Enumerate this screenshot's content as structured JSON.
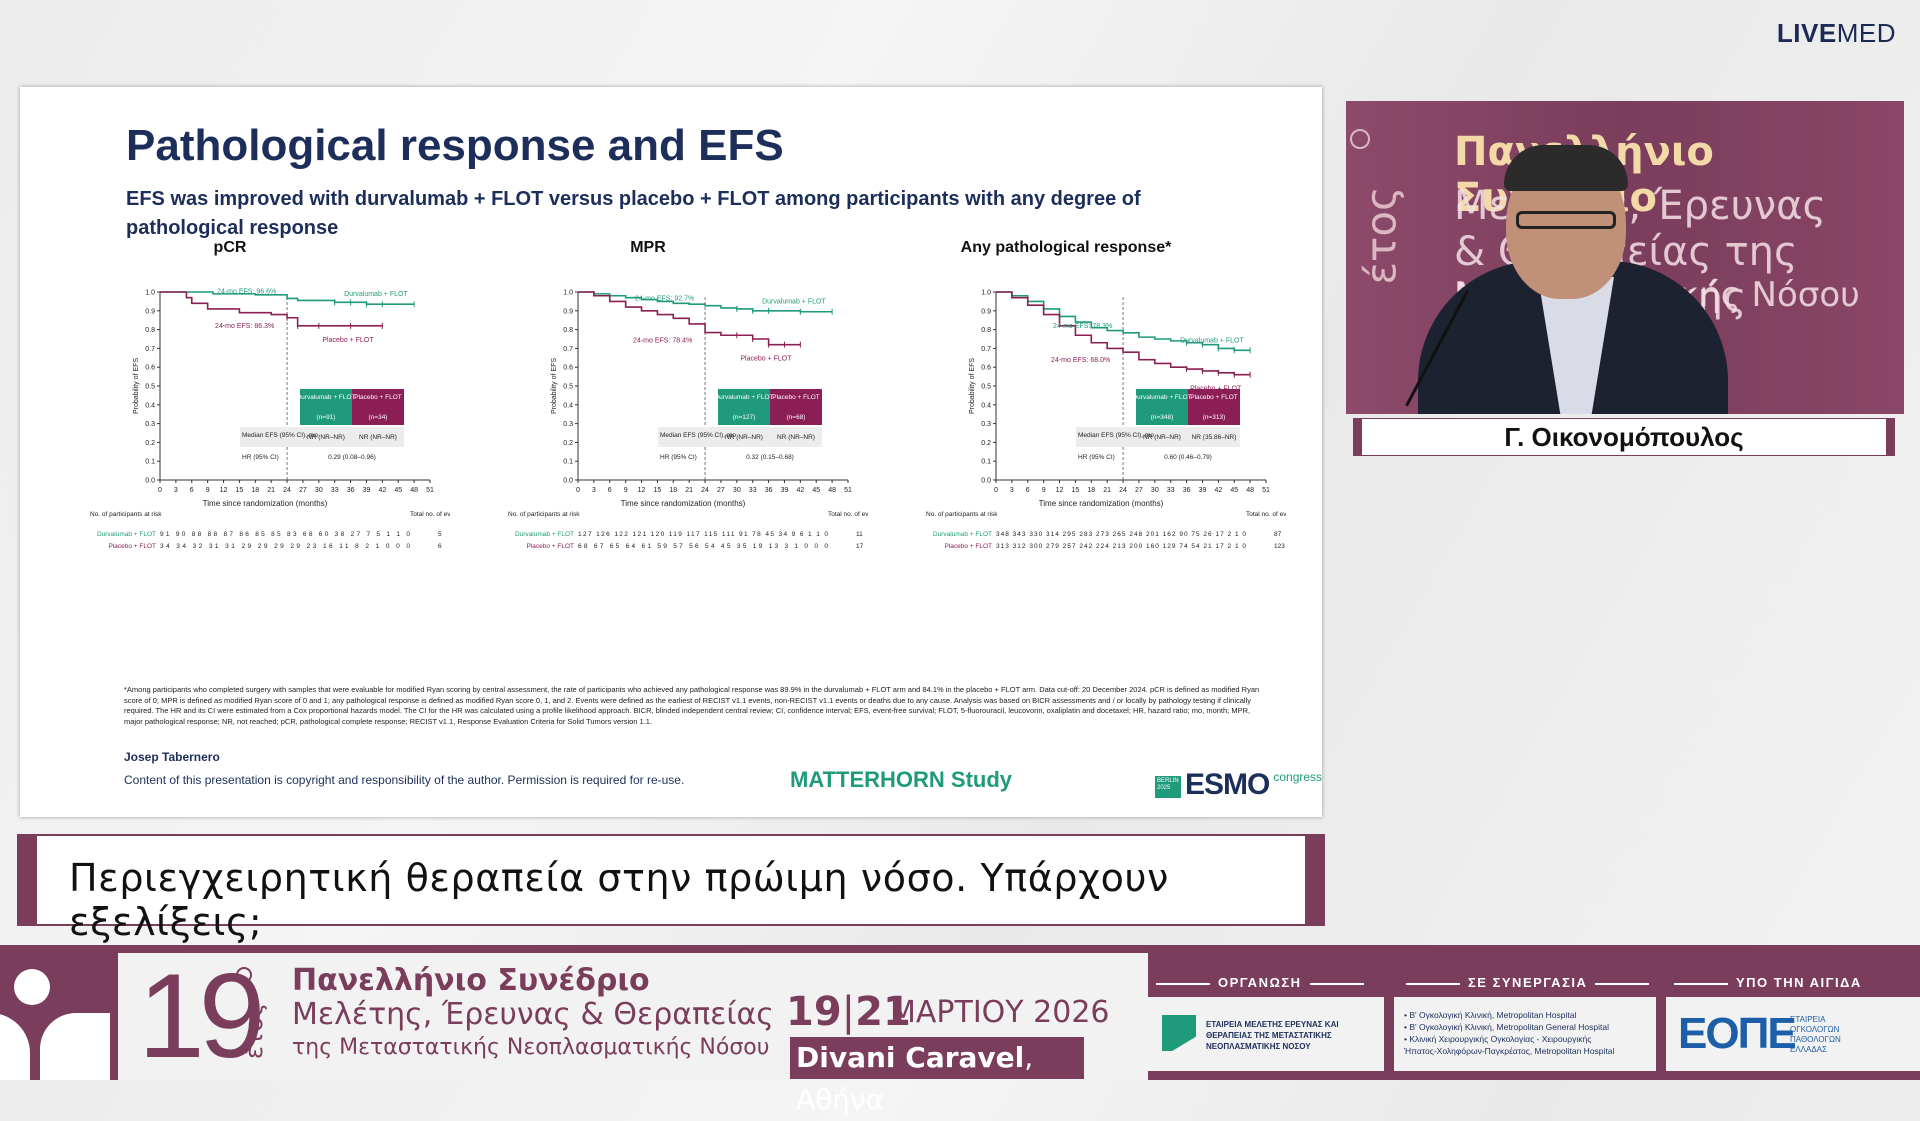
{
  "brand": {
    "live": "LIVE",
    "med": "MED"
  },
  "slide": {
    "title": "Pathological response and EFS",
    "subtitle": "EFS was improved with durvalumab + FLOT versus placebo + FLOT among participants with any degree of pathological response",
    "y_axis_label": "Probability of EFS",
    "x_axis_label": "Time since randomization (months)",
    "risk_header": "No. of participants at risk",
    "events_header": "Total no. of events",
    "table_headers": {
      "durva": "Durvalumab + FLOT",
      "placebo": "Placebo + FLOT",
      "median_label": "Median EFS (95% CI), mo",
      "hr_label": "HR (95% CI)"
    },
    "footnote": "*Among participants who completed surgery with samples that were evaluable for modified Ryan scoring by central assessment, the rate of participants who achieved any pathological response was 89.9% in the durvalumab + FLOT arm and 84.1% in the placebo + FLOT arm. Data cut-off: 20 December 2024. pCR is defined as modified Ryan score of 0; MPR is defined as modified Ryan score of 0 and 1; any pathological response is defined as modified Ryan score 0, 1, and 2. Events were defined as the earliest of RECIST v1.1 events, non-RECIST v1.1 events or deaths due to any cause. Analysis was based on BICR assessments and / or locally by pathology testing if clinically required. The HR and its CI were estimated from a Cox proportional hazards model. The CI for the HR was calculated using a profile likelihood approach. BICR, blinded independent central review; CI, confidence interval; EFS, event-free survival; FLOT, 5-fluorouracil, leucovorin, oxaliplatin and docetaxel; HR, hazard ratio; mo, month; MPR, major pathological response; NR, not reached; pCR, pathological complete response; RECIST v1.1, Response Evaluation Criteria for Solid Tumors version 1.1.",
    "author": "Josep Tabernero",
    "copyright": "Content of this presentation is copyright and responsibility of the author. Permission is required for re-use.",
    "study": "MATTERHORN Study",
    "esmo_box": "BERLIN 2025",
    "esmo_word": "ESMO",
    "esmo_congress": "congress"
  },
  "chart_data": [
    {
      "type": "line",
      "title": "pCR",
      "xlabel": "Time since randomization (months)",
      "ylabel": "Probability of EFS",
      "xlim": [
        0,
        51
      ],
      "ylim": [
        0,
        1.0
      ],
      "x_ticks": [
        0,
        3,
        6,
        9,
        12,
        15,
        18,
        21,
        24,
        27,
        30,
        33,
        36,
        39,
        42,
        45,
        48,
        51
      ],
      "y_ticks": [
        0,
        0.1,
        0.2,
        0.3,
        0.4,
        0.5,
        0.6,
        0.7,
        0.8,
        0.9,
        1.0
      ],
      "series": [
        {
          "name": "Durvalumab + FLOT",
          "color": "#1f9a7a",
          "points": [
            [
              0,
              1.0
            ],
            [
              6,
              1.0
            ],
            [
              10,
              0.99
            ],
            [
              18,
              0.985
            ],
            [
              24,
              0.966
            ],
            [
              26,
              0.955
            ],
            [
              30,
              0.955
            ],
            [
              33,
              0.945
            ],
            [
              36,
              0.945
            ],
            [
              39,
              0.935
            ],
            [
              42,
              0.935
            ],
            [
              48,
              0.935
            ]
          ]
        },
        {
          "name": "Placebo + FLOT",
          "color": "#8b1e55",
          "points": [
            [
              0,
              1.0
            ],
            [
              3,
              1.0
            ],
            [
              5,
              0.97
            ],
            [
              6,
              0.94
            ],
            [
              9,
              0.91
            ],
            [
              15,
              0.89
            ],
            [
              21,
              0.88
            ],
            [
              24,
              0.863
            ],
            [
              26,
              0.82
            ],
            [
              30,
              0.82
            ],
            [
              36,
              0.82
            ],
            [
              42,
              0.82
            ]
          ]
        }
      ],
      "annotations": [
        "24-mo EFS: 96.6%",
        "24-mo EFS: 86.3%"
      ],
      "table": {
        "durva_n": "(n=91)",
        "placebo_n": "(n=34)",
        "median_durva": "NR (NR–NR)",
        "median_placebo": "NR (NR–NR)",
        "hr": "0.29 (0.08–0.96)"
      },
      "risk": {
        "durva": "91  90  88  88  87  86  85  85  83  68  60  38  27  7  5  1  1  0",
        "placebo": "34  34  32  31  31  29  29  29  29  23  16  11  8  2  1  0  0  0",
        "durva_events": "5",
        "placebo_events": "6"
      }
    },
    {
      "type": "line",
      "title": "MPR",
      "xlabel": "Time since randomization (months)",
      "ylabel": "Probability of EFS",
      "xlim": [
        0,
        51
      ],
      "ylim": [
        0,
        1.0
      ],
      "x_ticks": [
        0,
        3,
        6,
        9,
        12,
        15,
        18,
        21,
        24,
        27,
        30,
        33,
        36,
        39,
        42,
        45,
        48,
        51
      ],
      "y_ticks": [
        0,
        0.1,
        0.2,
        0.3,
        0.4,
        0.5,
        0.6,
        0.7,
        0.8,
        0.9,
        1.0
      ],
      "series": [
        {
          "name": "Durvalumab + FLOT",
          "color": "#1f9a7a",
          "points": [
            [
              0,
              1.0
            ],
            [
              3,
              0.99
            ],
            [
              6,
              0.98
            ],
            [
              9,
              0.97
            ],
            [
              12,
              0.96
            ],
            [
              15,
              0.95
            ],
            [
              18,
              0.94
            ],
            [
              21,
              0.935
            ],
            [
              24,
              0.927
            ],
            [
              27,
              0.915
            ],
            [
              30,
              0.91
            ],
            [
              33,
              0.9
            ],
            [
              36,
              0.9
            ],
            [
              42,
              0.895
            ],
            [
              48,
              0.895
            ]
          ]
        },
        {
          "name": "Placebo + FLOT",
          "color": "#8b1e55",
          "points": [
            [
              0,
              1.0
            ],
            [
              3,
              0.98
            ],
            [
              6,
              0.95
            ],
            [
              9,
              0.92
            ],
            [
              12,
              0.9
            ],
            [
              15,
              0.88
            ],
            [
              18,
              0.86
            ],
            [
              21,
              0.83
            ],
            [
              24,
              0.784
            ],
            [
              27,
              0.77
            ],
            [
              30,
              0.77
            ],
            [
              33,
              0.75
            ],
            [
              36,
              0.72
            ],
            [
              39,
              0.72
            ],
            [
              42,
              0.72
            ]
          ]
        }
      ],
      "annotations": [
        "24-mo EFS: 92.7%",
        "24-mo EFS: 78.4%"
      ],
      "table": {
        "durva_n": "(n=127)",
        "placebo_n": "(n=68)",
        "median_durva": "NR (NR–NR)",
        "median_placebo": "NR (NR–NR)",
        "hr": "0.32 (0.15–0.68)"
      },
      "risk": {
        "durva": "127  126  122  121  120  119  117  115  111  91  78  45  34  9  6  1  1  0",
        "placebo": "68  67  65  64  61  59  57  56  54  45  35  19  13  3  1  0  0  0",
        "durva_events": "11",
        "placebo_events": "17"
      }
    },
    {
      "type": "line",
      "title": "Any pathological response*",
      "xlabel": "Time since randomization (months)",
      "ylabel": "Probability of EFS",
      "xlim": [
        0,
        51
      ],
      "ylim": [
        0,
        1.0
      ],
      "x_ticks": [
        0,
        3,
        6,
        9,
        12,
        15,
        18,
        21,
        24,
        27,
        30,
        33,
        36,
        39,
        42,
        45,
        48,
        51
      ],
      "y_ticks": [
        0,
        0.1,
        0.2,
        0.3,
        0.4,
        0.5,
        0.6,
        0.7,
        0.8,
        0.9,
        1.0
      ],
      "series": [
        {
          "name": "Durvalumab + FLOT",
          "color": "#1f9a7a",
          "points": [
            [
              0,
              1.0
            ],
            [
              3,
              0.98
            ],
            [
              6,
              0.95
            ],
            [
              9,
              0.91
            ],
            [
              12,
              0.87
            ],
            [
              15,
              0.84
            ],
            [
              18,
              0.81
            ],
            [
              21,
              0.795
            ],
            [
              24,
              0.783
            ],
            [
              27,
              0.76
            ],
            [
              30,
              0.75
            ],
            [
              33,
              0.74
            ],
            [
              36,
              0.73
            ],
            [
              39,
              0.72
            ],
            [
              42,
              0.7
            ],
            [
              45,
              0.69
            ],
            [
              48,
              0.69
            ]
          ]
        },
        {
          "name": "Placebo + FLOT",
          "color": "#8b1e55",
          "points": [
            [
              0,
              1.0
            ],
            [
              3,
              0.97
            ],
            [
              6,
              0.93
            ],
            [
              9,
              0.88
            ],
            [
              12,
              0.82
            ],
            [
              15,
              0.77
            ],
            [
              18,
              0.73
            ],
            [
              21,
              0.7
            ],
            [
              24,
              0.68
            ],
            [
              27,
              0.64
            ],
            [
              30,
              0.62
            ],
            [
              33,
              0.6
            ],
            [
              36,
              0.59
            ],
            [
              39,
              0.58
            ],
            [
              42,
              0.57
            ],
            [
              45,
              0.56
            ],
            [
              48,
              0.56
            ]
          ]
        }
      ],
      "annotations": [
        "24-mo EFS: 78.3%",
        "24-mo EFS: 68.0%"
      ],
      "table": {
        "durva_n": "(n=348)",
        "placebo_n": "(n=313)",
        "median_durva": "NR (NR–NR)",
        "median_placebo": "NR (35.86–NR)",
        "hr": "0.60 (0.46–0.79)"
      },
      "risk": {
        "durva": "348  343  330  314  295  283  273  265  248  201  162  90  75  26  17  2  1  0",
        "placebo": "313  312  300  279  257  242  224  213  200  160  129  74  54  21  17  2  1  0",
        "durva_events": "87",
        "placebo_events": "123"
      }
    }
  ],
  "video": {
    "bg_line1": "Πανελλήνιο Συνέδριο",
    "bg_line2": "Μελέτης, Έρευνας",
    "bg_line3": "& Θεραπείας της Μεταστατικής",
    "bg_line4": "Νεοπλασματικής Νόσου",
    "bg_logo": "έτος"
  },
  "speaker_name": "Γ. Οικονομόπουλος",
  "caption": "Περιεγχειρητική θεραπεία στην πρώιμη νόσο. Υπάρχουν εξελίξεις;",
  "footer": {
    "edition": "19",
    "edition_suffix": "έτος",
    "title1": "Πανελλήνιο Συνέδριο",
    "title2": "Μελέτης, Έρευνας & Θεραπείας",
    "title3": "της Μεταστατικής Νεοπλασματικής Νόσου",
    "date_from": "19",
    "date_to": "21",
    "month": "ΜΑΡΤΙΟΥ 2026",
    "venue": "Divani Caravel",
    "city": "Αθήνα",
    "org_label": "ΟΡΓΑΝΩΣΗ",
    "org_text": "ΕΤΑΙΡΕΙΑ ΜΕΛΕΤΗΣ ΕΡΕΥΝΑΣ ΚΑΙ ΘΕΡΑΠΕΙΑΣ ΤΗΣ ΜΕΤΑΣΤΑΤΙΚΗΣ ΝΕΟΠΛΑΣΜΑΤΙΚΗΣ ΝΟΣΟΥ",
    "coop_label": "ΣΕ ΣΥΝΕΡΓΑΣΙΑ",
    "coop_items": [
      "• Β' Ογκολογική Κλινική, Metropolitan Hospital",
      "• Β' Ογκολογική Κλινική, Metropolitan General Hospital",
      "• Κλινική Χειρουργικής Ογκολογίας - Χειρουργικής",
      "Ήπατος-Χοληφόρων-Παγκρέατος, Metropolitan Hospital"
    ],
    "aegis_label": "ΥΠΟ ΤΗΝ ΑΙΓΙΔΑ",
    "eope": "ΕΟΠΕ",
    "eope_sub": "ΕΤΑΙΡΕΙΑ ΟΓΚΟΛΟΓΩΝ ΠΑΘΟΛΟΓΩΝ ΕΛΛΑΔΑΣ"
  }
}
